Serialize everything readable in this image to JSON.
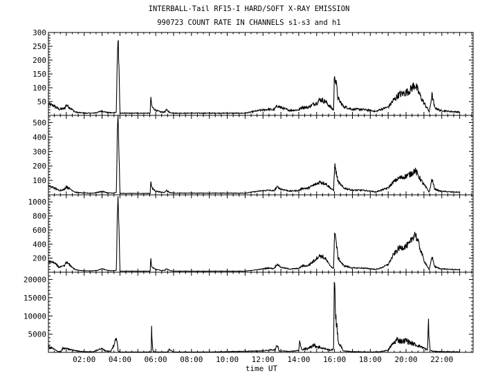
{
  "title_line1": "INTERBALL-Tail RF15-I HARD/SOFT X-RAY EMISSION",
  "title_line2": "990723  COUNT RATE IN CHANNELS s1-s3 and h1",
  "xlabel": "time UT",
  "chart_data": [
    {
      "type": "line",
      "panel": "s1",
      "ylim": [
        0,
        300
      ],
      "yticks": [
        50,
        100,
        150,
        200,
        250,
        300
      ],
      "xlim": [
        0,
        23.75
      ],
      "xticks": [
        "02:00",
        "04:00",
        "06:00",
        "08:00",
        "10:00",
        "12:00",
        "14:00",
        "16:00",
        "18:00",
        "20:00",
        "22:00"
      ],
      "series": [
        {
          "x": [
            0,
            0.3,
            0.6,
            0.9,
            1.0,
            1.2,
            1.5,
            2.0,
            2.5,
            2.8,
            3.0,
            3.3,
            3.6,
            3.8,
            3.82,
            3.85,
            3.9,
            4.0,
            5.7,
            5.72,
            5.75,
            5.8,
            6.0,
            6.3,
            6.5,
            6.6,
            6.8,
            7.0,
            8,
            9,
            10,
            11,
            11.8,
            12.3,
            12.6,
            12.8,
            13.0,
            13.5,
            14.0,
            14.2,
            14.5,
            14.8,
            15.0,
            15.2,
            15.5,
            15.7,
            15.9,
            15.95,
            16.0,
            16.2,
            16.5,
            17,
            17.5,
            18,
            18.3,
            18.6,
            19.0,
            19.3,
            19.6,
            19.9,
            20.2,
            20.5,
            20.8,
            21.0,
            21.2,
            21.3,
            21.45,
            21.6,
            21.9,
            22.5,
            23.0
          ],
          "y": [
            40,
            35,
            22,
            25,
            38,
            28,
            12,
            8,
            8,
            12,
            16,
            10,
            9,
            12,
            90,
            210,
            290,
            8,
            8,
            80,
            45,
            30,
            18,
            12,
            12,
            20,
            10,
            8,
            8,
            8,
            8,
            8,
            18,
            22,
            20,
            35,
            28,
            18,
            20,
            30,
            28,
            40,
            45,
            58,
            50,
            35,
            22,
            20,
            160,
            60,
            32,
            22,
            22,
            18,
            14,
            22,
            30,
            55,
            75,
            80,
            90,
            112,
            70,
            45,
            25,
            12,
            75,
            28,
            18,
            14,
            12
          ],
          "noise": 0.35
        }
      ]
    },
    {
      "type": "line",
      "panel": "s2",
      "ylim": [
        0,
        550
      ],
      "yticks": [
        100,
        200,
        300,
        400,
        500
      ],
      "xlim": [
        0,
        23.75
      ],
      "series": [
        {
          "x": [
            0,
            0.3,
            0.6,
            0.9,
            1.0,
            1.2,
            1.5,
            2.0,
            2.5,
            2.8,
            3.0,
            3.3,
            3.6,
            3.8,
            3.82,
            3.85,
            3.9,
            4.0,
            5.7,
            5.72,
            5.75,
            5.8,
            6.0,
            6.3,
            6.5,
            6.6,
            6.8,
            7.0,
            8,
            9,
            10,
            11,
            11.8,
            12.3,
            12.6,
            12.8,
            13.0,
            13.5,
            14.0,
            14.2,
            14.5,
            14.8,
            15.0,
            15.2,
            15.5,
            15.7,
            15.9,
            15.95,
            16.0,
            16.2,
            16.5,
            17,
            17.5,
            18,
            18.3,
            18.6,
            19.0,
            19.3,
            19.6,
            19.9,
            20.2,
            20.5,
            20.8,
            21.0,
            21.2,
            21.3,
            21.45,
            21.6,
            21.9,
            22.5,
            23.0
          ],
          "y": [
            60,
            50,
            30,
            38,
            58,
            42,
            18,
            12,
            12,
            18,
            24,
            14,
            12,
            16,
            150,
            400,
            545,
            10,
            10,
            120,
            70,
            45,
            26,
            18,
            18,
            30,
            15,
            12,
            12,
            12,
            12,
            12,
            26,
            32,
            28,
            55,
            40,
            26,
            30,
            45,
            45,
            65,
            75,
            90,
            78,
            55,
            34,
            30,
            210,
            90,
            48,
            32,
            32,
            26,
            20,
            32,
            48,
            90,
            115,
            125,
            140,
            170,
            110,
            70,
            38,
            18,
            110,
            40,
            26,
            20,
            18
          ],
          "noise": 0.3
        }
      ]
    },
    {
      "type": "line",
      "panel": "s3",
      "ylim": [
        0,
        1100
      ],
      "yticks": [
        200,
        400,
        600,
        800,
        1000
      ],
      "xlim": [
        0,
        23.75
      ],
      "series": [
        {
          "x": [
            0,
            0.3,
            0.6,
            0.9,
            1.0,
            1.2,
            1.5,
            2.0,
            2.5,
            2.8,
            3.0,
            3.3,
            3.6,
            3.8,
            3.82,
            3.85,
            3.9,
            4.0,
            5.7,
            5.72,
            5.75,
            5.8,
            6.0,
            6.3,
            6.5,
            6.6,
            6.8,
            7.0,
            8,
            9,
            10,
            11,
            11.8,
            12.3,
            12.6,
            12.8,
            13.0,
            13.5,
            14.0,
            14.2,
            14.5,
            14.8,
            15.0,
            15.2,
            15.5,
            15.7,
            15.9,
            15.95,
            16.0,
            16.2,
            16.5,
            17,
            17.5,
            18,
            18.3,
            18.6,
            19.0,
            19.3,
            19.6,
            19.9,
            20.2,
            20.5,
            20.8,
            21.0,
            21.2,
            21.3,
            21.45,
            21.6,
            21.9,
            22.5,
            23.0
          ],
          "y": [
            150,
            140,
            70,
            90,
            145,
            100,
            35,
            20,
            20,
            30,
            50,
            25,
            20,
            30,
            300,
            800,
            1090,
            15,
            15,
            220,
            110,
            70,
            40,
            25,
            25,
            50,
            22,
            15,
            15,
            15,
            15,
            15,
            40,
            60,
            50,
            115,
            70,
            45,
            55,
            90,
            90,
            150,
            200,
            240,
            190,
            110,
            60,
            50,
            620,
            200,
            95,
            60,
            60,
            50,
            40,
            60,
            110,
            250,
            340,
            360,
            400,
            560,
            330,
            170,
            80,
            30,
            230,
            80,
            50,
            40,
            35
          ],
          "noise": 0.25
        }
      ]
    },
    {
      "type": "line",
      "panel": "h1",
      "ylim": [
        0,
        22000
      ],
      "yticks": [
        5000,
        10000,
        15000,
        20000
      ],
      "xlim": [
        0,
        23.75
      ],
      "series": [
        {
          "x": [
            0,
            0.2,
            0.5,
            0.7,
            0.8,
            1.0,
            1.3,
            1.6,
            2.0,
            2.5,
            2.8,
            3.0,
            3.2,
            3.5,
            3.7,
            3.8,
            3.85,
            3.9,
            4.0,
            5.75,
            5.77,
            5.8,
            5.85,
            6.0,
            6.7,
            6.75,
            7.0,
            8,
            9,
            10,
            11,
            12,
            12.7,
            12.8,
            12.9,
            13.5,
            14.0,
            14.05,
            14.15,
            14.5,
            14.8,
            15.0,
            15.3,
            15.6,
            15.8,
            15.95,
            16.0,
            16.05,
            16.2,
            16.5,
            17.0,
            18,
            18.5,
            19.0,
            19.2,
            19.5,
            19.8,
            20.0,
            20.3,
            20.6,
            21.0,
            21.2,
            21.25,
            21.3,
            21.35,
            21.5,
            22,
            23.0
          ],
          "y": [
            1500,
            1200,
            300,
            200,
            1100,
            1000,
            700,
            400,
            200,
            150,
            800,
            1000,
            400,
            300,
            2500,
            4000,
            3000,
            300,
            100,
            100,
            7200,
            2500,
            300,
            100,
            100,
            800,
            100,
            100,
            100,
            200,
            300,
            400,
            800,
            2200,
            400,
            300,
            500,
            3000,
            800,
            1000,
            2000,
            1600,
            1200,
            800,
            600,
            1000,
            22000,
            12000,
            3000,
            400,
            200,
            100,
            150,
            600,
            2000,
            3500,
            3000,
            3300,
            2500,
            2000,
            1200,
            600,
            8800,
            3000,
            600,
            300,
            200,
            150
          ],
          "noise": 0.5
        }
      ]
    }
  ]
}
